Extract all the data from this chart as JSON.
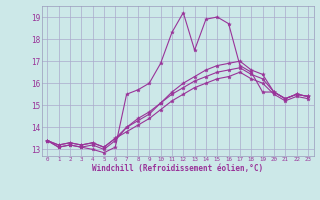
{
  "xlabel": "Windchill (Refroidissement éolien,°C)",
  "xlim": [
    -0.5,
    23.5
  ],
  "ylim": [
    12.7,
    19.5
  ],
  "yticks": [
    13,
    14,
    15,
    16,
    17,
    18,
    19
  ],
  "xticks": [
    0,
    1,
    2,
    3,
    4,
    5,
    6,
    7,
    8,
    9,
    10,
    11,
    12,
    13,
    14,
    15,
    16,
    17,
    18,
    19,
    20,
    21,
    22,
    23
  ],
  "bg_color": "#cce8e8",
  "grid_color": "#aaaacc",
  "line_color": "#993399",
  "lines": [
    [
      13.4,
      13.1,
      13.2,
      13.1,
      13.0,
      12.85,
      13.1,
      15.5,
      15.7,
      16.0,
      16.9,
      18.3,
      19.2,
      17.5,
      18.9,
      19.0,
      18.7,
      16.8,
      16.5,
      15.6,
      15.6,
      15.3,
      15.5,
      15.4
    ],
    [
      13.4,
      13.1,
      13.2,
      13.1,
      13.2,
      13.0,
      13.4,
      14.0,
      14.3,
      14.6,
      15.1,
      15.6,
      16.0,
      16.3,
      16.6,
      16.8,
      16.9,
      17.0,
      16.6,
      16.4,
      15.6,
      15.3,
      15.5,
      15.4
    ],
    [
      13.4,
      13.2,
      13.3,
      13.2,
      13.3,
      13.1,
      13.5,
      14.0,
      14.4,
      14.7,
      15.1,
      15.5,
      15.8,
      16.1,
      16.3,
      16.5,
      16.6,
      16.7,
      16.4,
      16.2,
      15.6,
      15.3,
      15.5,
      15.4
    ],
    [
      13.4,
      13.2,
      13.3,
      13.2,
      13.3,
      13.1,
      13.5,
      13.8,
      14.1,
      14.4,
      14.8,
      15.2,
      15.5,
      15.8,
      16.0,
      16.2,
      16.3,
      16.5,
      16.2,
      16.0,
      15.5,
      15.2,
      15.4,
      15.3
    ]
  ]
}
